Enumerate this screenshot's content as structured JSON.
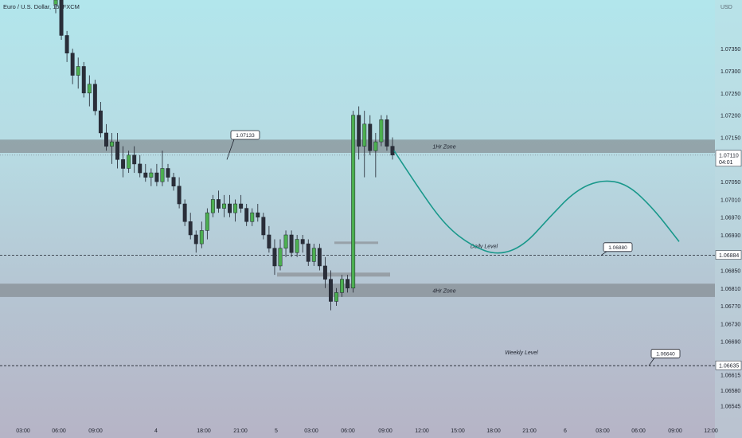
{
  "chart_data": {
    "type": "candlestick",
    "title": "Euro / U.S. Dollar, 15, FXCM",
    "y_unit_label": "USD",
    "ylim": [
      1.06515,
      1.07415
    ],
    "y_ticks": [
      1.0735,
      1.073,
      1.0725,
      1.072,
      1.0715,
      1.0705,
      1.0701,
      1.0697,
      1.0693,
      1.0685,
      1.0681,
      1.0677,
      1.0673,
      1.0669,
      1.06615,
      1.0658,
      1.06545
    ],
    "y_tick_labels": [
      "1.07350",
      "1.07300",
      "1.07250",
      "1.07200",
      "1.07150",
      "1.07050",
      "1.07010",
      "1.06970",
      "1.06930",
      "1.06850",
      "1.06810",
      "1.06770",
      "1.06730",
      "1.06690",
      "1.06615",
      "1.06580",
      "1.06545"
    ],
    "x_tick_labels": [
      "03:00",
      "06:00",
      "09:00",
      "4",
      "18:00",
      "21:00",
      "5",
      "03:00",
      "06:00",
      "09:00",
      "12:00",
      "15:00",
      "18:00",
      "21:00",
      "6",
      "03:00",
      "06:00",
      "09:00",
      "12:00"
    ],
    "price_badges": [
      {
        "label": "1.07110",
        "sub": "04:01",
        "value": 1.0711,
        "color": "#ffffff",
        "text_color": "#1e222d"
      },
      {
        "label": "1.06884",
        "value": 1.06884,
        "color": "#ffffff",
        "text_color": "#1e222d"
      },
      {
        "label": "1.06635",
        "value": 1.06635,
        "color": "#ffffff",
        "text_color": "#1e222d"
      }
    ],
    "zones": [
      {
        "label": "1Hr Zone",
        "low": 1.07115,
        "high": 1.07145
      },
      {
        "label": "4Hr Zone",
        "low": 1.0679,
        "high": 1.0682
      }
    ],
    "levels": [
      {
        "label": "Daily Level",
        "value": 1.06884
      },
      {
        "label": "Weekly Level",
        "value": 1.06635
      }
    ],
    "callouts": [
      "1.07133",
      "1.06880",
      "1.06640"
    ],
    "projection": [
      [
        1.0712,
        1.0703,
        1.0695,
        1.06905,
        1.06884,
        1.06905,
        1.0697,
        1.0703,
        1.07055,
        1.07045,
        1.0699,
        1.06915
      ]
    ],
    "candles": [
      [
        1.0745,
        1.0747,
        1.0743,
        1.0746
      ],
      [
        1.0746,
        1.0748,
        1.0737,
        1.0738
      ],
      [
        1.0738,
        1.0739,
        1.0732,
        1.0734
      ],
      [
        1.0734,
        1.0735,
        1.0727,
        1.0729
      ],
      [
        1.0729,
        1.0733,
        1.0726,
        1.0731
      ],
      [
        1.0731,
        1.0732,
        1.0724,
        1.0725
      ],
      [
        1.0725,
        1.0729,
        1.0722,
        1.0727
      ],
      [
        1.0727,
        1.0728,
        1.072,
        1.0721
      ],
      [
        1.0721,
        1.0723,
        1.0715,
        1.0716
      ],
      [
        1.0716,
        1.0718,
        1.0712,
        1.0713
      ],
      [
        1.0713,
        1.0716,
        1.0709,
        1.0714
      ],
      [
        1.0714,
        1.0716,
        1.0708,
        1.071
      ],
      [
        1.071,
        1.0713,
        1.0706,
        1.0708
      ],
      [
        1.0708,
        1.0712,
        1.0707,
        1.0711
      ],
      [
        1.0711,
        1.0713,
        1.0707,
        1.0709
      ],
      [
        1.0709,
        1.0711,
        1.0706,
        1.0707
      ],
      [
        1.0707,
        1.0709,
        1.0705,
        1.0706
      ],
      [
        1.0706,
        1.0708,
        1.0704,
        1.0707
      ],
      [
        1.0707,
        1.0709,
        1.0704,
        1.0705
      ],
      [
        1.0705,
        1.0712,
        1.0704,
        1.0708
      ],
      [
        1.0708,
        1.0709,
        1.0705,
        1.0706
      ],
      [
        1.0706,
        1.0707,
        1.0703,
        1.0704
      ],
      [
        1.0704,
        1.0706,
        1.0699,
        1.07
      ],
      [
        1.07,
        1.0701,
        1.0695,
        1.0696
      ],
      [
        1.0696,
        1.0698,
        1.0692,
        1.0693
      ],
      [
        1.0693,
        1.0694,
        1.0689,
        1.0691
      ],
      [
        1.0691,
        1.0696,
        1.069,
        1.0694
      ],
      [
        1.0694,
        1.0699,
        1.0692,
        1.0698
      ],
      [
        1.0698,
        1.0702,
        1.0697,
        1.0701
      ],
      [
        1.0701,
        1.0703,
        1.0698,
        1.0699
      ],
      [
        1.0699,
        1.0702,
        1.0697,
        1.07
      ],
      [
        1.07,
        1.0702,
        1.0697,
        1.0698
      ],
      [
        1.0698,
        1.0701,
        1.0696,
        1.07
      ],
      [
        1.07,
        1.0702,
        1.0698,
        1.0699
      ],
      [
        1.0699,
        1.07,
        1.0695,
        1.0696
      ],
      [
        1.0696,
        1.0699,
        1.0695,
        1.0698
      ],
      [
        1.0698,
        1.07,
        1.0696,
        1.0697
      ],
      [
        1.0697,
        1.0698,
        1.0692,
        1.0693
      ],
      [
        1.0693,
        1.0695,
        1.0689,
        1.069
      ],
      [
        1.069,
        1.0692,
        1.0684,
        1.0686
      ],
      [
        1.0686,
        1.0692,
        1.0685,
        1.069
      ],
      [
        1.069,
        1.0694,
        1.0688,
        1.0693
      ],
      [
        1.0693,
        1.0694,
        1.0688,
        1.0689
      ],
      [
        1.0689,
        1.0693,
        1.0688,
        1.0692
      ],
      [
        1.0692,
        1.0693,
        1.0689,
        1.0691
      ],
      [
        1.0691,
        1.0692,
        1.0686,
        1.0687
      ],
      [
        1.0687,
        1.0691,
        1.0686,
        1.069
      ],
      [
        1.069,
        1.0691,
        1.0685,
        1.0686
      ],
      [
        1.0686,
        1.0688,
        1.0681,
        1.0683
      ],
      [
        1.0683,
        1.0685,
        1.0676,
        1.0678
      ],
      [
        1.0678,
        1.0681,
        1.0677,
        1.068
      ],
      [
        1.068,
        1.0684,
        1.0679,
        1.0683
      ],
      [
        1.0683,
        1.0684,
        1.068,
        1.0681
      ],
      [
        1.0681,
        1.0721,
        1.068,
        1.072
      ],
      [
        1.072,
        1.0722,
        1.071,
        1.0713
      ],
      [
        1.0713,
        1.0721,
        1.0706,
        1.0718
      ],
      [
        1.0718,
        1.072,
        1.0711,
        1.0712
      ],
      [
        1.0712,
        1.0716,
        1.0706,
        1.0714
      ],
      [
        1.0714,
        1.072,
        1.0713,
        1.0719
      ],
      [
        1.0719,
        1.072,
        1.0712,
        1.0713
      ],
      [
        1.0713,
        1.0715,
        1.071,
        1.0711
      ]
    ]
  }
}
